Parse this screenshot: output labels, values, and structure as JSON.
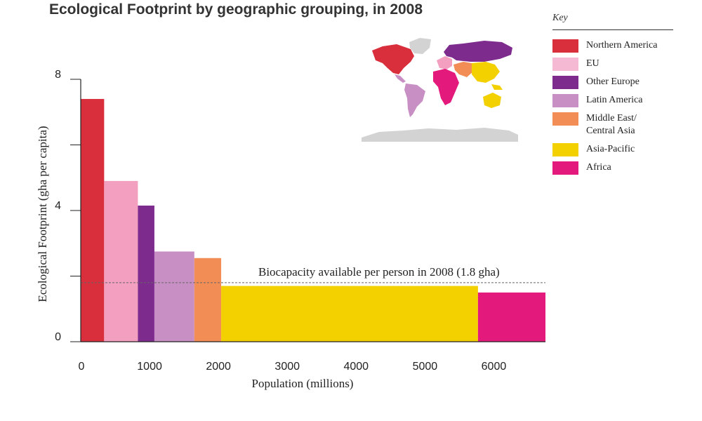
{
  "title": "Ecological Footprint by geographic grouping, in 2008",
  "colors": {
    "northern_america": "#d92e3b",
    "eu": "#f3a0c0",
    "other_europe": "#7d2c8e",
    "latin_america": "#c88fc4",
    "middle_east": "#f28e55",
    "asia_pacific": "#f3d000",
    "africa": "#e3197b",
    "map_gray": "#d3d3d3"
  },
  "key": {
    "title": "Key",
    "items": [
      {
        "label": "Northern America",
        "color": "#d92e3b"
      },
      {
        "label": "EU",
        "color": "#f6b9d3"
      },
      {
        "label": "Other Europe",
        "color": "#7d2c8e"
      },
      {
        "label": "Latin America",
        "color": "#c88fc4"
      },
      {
        "label": "Middle East/\nCentral Asia",
        "color": "#f28e55"
      },
      {
        "label": "Asia-Pacific",
        "color": "#f3d000"
      },
      {
        "label": "Africa",
        "color": "#e3197b"
      }
    ]
  },
  "chart_data": {
    "type": "bar",
    "title": "Ecological Footprint by geographic grouping, in 2008",
    "xlabel": "Population (millions)",
    "ylabel": "Ecological Footprint (gha per capita)",
    "xlim": [
      0,
      6750
    ],
    "ylim": [
      0,
      8
    ],
    "x_ticks": [
      0,
      1000,
      2000,
      3000,
      4000,
      5000,
      6000
    ],
    "y_ticks": [
      0,
      4,
      8
    ],
    "y_minor_ticks": [
      2,
      6
    ],
    "grid": false,
    "bars": [
      {
        "name": "Northern America",
        "population": 340,
        "footprint": 7.4,
        "color": "#d92e3b"
      },
      {
        "name": "EU",
        "population": 490,
        "footprint": 4.9,
        "color": "#f3a0c0"
      },
      {
        "name": "Other Europe",
        "population": 240,
        "footprint": 4.15,
        "color": "#7d2c8e"
      },
      {
        "name": "Latin America",
        "population": 580,
        "footprint": 2.75,
        "color": "#c88fc4"
      },
      {
        "name": "Middle East/Central Asia",
        "population": 390,
        "footprint": 2.55,
        "color": "#f28e55"
      },
      {
        "name": "Asia-Pacific",
        "population": 3730,
        "footprint": 1.7,
        "color": "#f3d000"
      },
      {
        "name": "Africa",
        "population": 980,
        "footprint": 1.5,
        "color": "#e3197b"
      }
    ],
    "reference_line": {
      "value": 1.8,
      "label": "Biocapacity available per person in 2008 (1.8 gha)"
    }
  }
}
